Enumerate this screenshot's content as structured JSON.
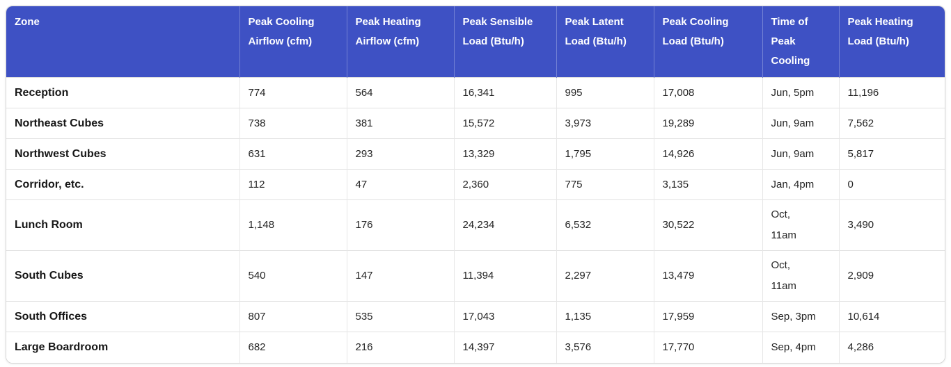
{
  "theme": {
    "header_bg": "#3e51c4",
    "header_text": "#ffffff",
    "row_border": "#e1e1e1",
    "zone_text": "#161616",
    "value_text": "#242424"
  },
  "chart_data": {
    "type": "table",
    "columns": [
      "Zone",
      "Peak Cooling Airflow (cfm)",
      "Peak Heating Airflow (cfm)",
      "Peak Sensible Load (Btu/h)",
      "Peak Latent Load (Btu/h)",
      "Peak Cooling Load (Btu/h)",
      "Time of Peak Cooling",
      "Peak Heating Load (Btu/h)"
    ],
    "rows": [
      [
        "Reception",
        "774",
        "564",
        "16,341",
        "995",
        "17,008",
        "Jun, 5pm",
        "11,196"
      ],
      [
        "Northeast Cubes",
        "738",
        "381",
        "15,572",
        "3,973",
        "19,289",
        "Jun, 9am",
        "7,562"
      ],
      [
        "Northwest Cubes",
        "631",
        "293",
        "13,329",
        "1,795",
        "14,926",
        "Jun, 9am",
        "5,817"
      ],
      [
        "Corridor, etc.",
        "112",
        "47",
        "2,360",
        "775",
        "3,135",
        "Jan, 4pm",
        "0"
      ],
      [
        "Lunch Room",
        "1,148",
        "176",
        "24,234",
        "6,532",
        "30,522",
        "Oct, 11am",
        "3,490"
      ],
      [
        "South Cubes",
        "540",
        "147",
        "11,394",
        "2,297",
        "13,479",
        "Oct, 11am",
        "2,909"
      ],
      [
        "South Offices",
        "807",
        "535",
        "17,043",
        "1,135",
        "17,959",
        "Sep, 3pm",
        "10,614"
      ],
      [
        "Large Boardroom",
        "682",
        "216",
        "14,397",
        "3,576",
        "17,770",
        "Sep, 4pm",
        "4,286"
      ]
    ]
  }
}
